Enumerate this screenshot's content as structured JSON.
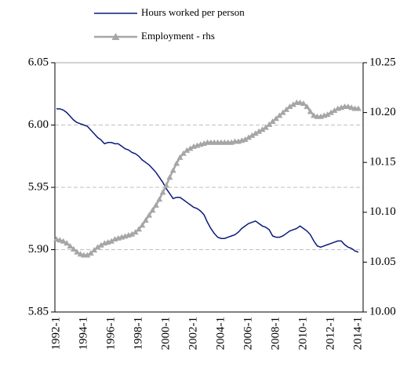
{
  "chart_data": {
    "type": "line",
    "categories": [
      "1992-1",
      null,
      null,
      null,
      null,
      null,
      null,
      null,
      "1994-1",
      null,
      null,
      null,
      null,
      null,
      null,
      null,
      "1996-1",
      null,
      null,
      null,
      null,
      null,
      null,
      null,
      "1998-1",
      null,
      null,
      null,
      null,
      null,
      null,
      null,
      "2000-1",
      null,
      null,
      null,
      null,
      null,
      null,
      null,
      "2002-1",
      null,
      null,
      null,
      null,
      null,
      null,
      null,
      "2004-1",
      null,
      null,
      null,
      null,
      null,
      null,
      null,
      "2006-1",
      null,
      null,
      null,
      null,
      null,
      null,
      null,
      "2008-1",
      null,
      null,
      null,
      null,
      null,
      null,
      null,
      "2010-1",
      null,
      null,
      null,
      null,
      null,
      null,
      null,
      "2012-1",
      null,
      null,
      null,
      null,
      null,
      null,
      null,
      "2014-1"
    ],
    "series": [
      {
        "name": "Hours worked per person",
        "color": "#0a1a7a",
        "axis": "y",
        "values": [
          6.013,
          6.013,
          6.012,
          6.01,
          6.007,
          6.004,
          6.002,
          6.001,
          6.0,
          5.999,
          5.996,
          5.993,
          5.99,
          5.988,
          5.985,
          5.986,
          5.986,
          5.985,
          5.985,
          5.983,
          5.981,
          5.98,
          5.978,
          5.977,
          5.975,
          5.972,
          5.97,
          5.968,
          5.965,
          5.962,
          5.958,
          5.954,
          5.949,
          5.945,
          5.941,
          5.942,
          5.942,
          5.94,
          5.938,
          5.936,
          5.934,
          5.933,
          5.931,
          5.928,
          5.922,
          5.917,
          5.913,
          5.91,
          5.909,
          5.909,
          5.91,
          5.911,
          5.912,
          5.914,
          5.917,
          5.919,
          5.921,
          5.922,
          5.923,
          5.921,
          5.919,
          5.918,
          5.916,
          5.911,
          5.91,
          5.91,
          5.911,
          5.913,
          5.915,
          5.916,
          5.917,
          5.919,
          5.917,
          5.915,
          5.912,
          5.907,
          5.903,
          5.902,
          5.903,
          5.904,
          5.905,
          5.906,
          5.907,
          5.907,
          5.904,
          5.902,
          5.901,
          5.899,
          5.898
        ]
      },
      {
        "name": "Employment - rhs",
        "color": "#a6a6a6",
        "axis": "y2",
        "marker": "triangle",
        "values": [
          10.073,
          10.072,
          10.071,
          10.069,
          10.066,
          10.063,
          10.06,
          10.058,
          10.057,
          10.057,
          10.059,
          10.062,
          10.065,
          10.067,
          10.069,
          10.07,
          10.071,
          10.073,
          10.074,
          10.075,
          10.076,
          10.077,
          10.078,
          10.08,
          10.083,
          10.087,
          10.092,
          10.097,
          10.102,
          10.107,
          10.113,
          10.12,
          10.127,
          10.135,
          10.142,
          10.149,
          10.155,
          10.159,
          10.162,
          10.164,
          10.166,
          10.167,
          10.168,
          10.169,
          10.17,
          10.17,
          10.17,
          10.17,
          10.17,
          10.17,
          10.17,
          10.17,
          10.171,
          10.171,
          10.172,
          10.173,
          10.175,
          10.177,
          10.179,
          10.181,
          10.183,
          10.185,
          10.188,
          10.191,
          10.194,
          10.197,
          10.2,
          10.203,
          10.206,
          10.208,
          10.21,
          10.21,
          10.209,
          10.206,
          10.201,
          10.197,
          10.196,
          10.196,
          10.197,
          10.198,
          10.2,
          10.202,
          10.204,
          10.205,
          10.206,
          10.206,
          10.205,
          10.204,
          10.204
        ]
      }
    ],
    "ylim": [
      5.85,
      6.05
    ],
    "yticks": [
      5.85,
      {
        "value": 5.9,
        "label": "5.90"
      },
      5.95,
      {
        "value": 6,
        "label": "6.00"
      },
      6.05
    ],
    "y2lim": [
      10,
      10.25
    ],
    "y2ticks": [
      {
        "value": 10,
        "label": "10.00"
      },
      10.05,
      {
        "value": 10.1,
        "label": "10.10"
      },
      10.15,
      {
        "value": 10.2,
        "label": "10.20"
      },
      10.25
    ],
    "grid": true,
    "legend": "top"
  }
}
